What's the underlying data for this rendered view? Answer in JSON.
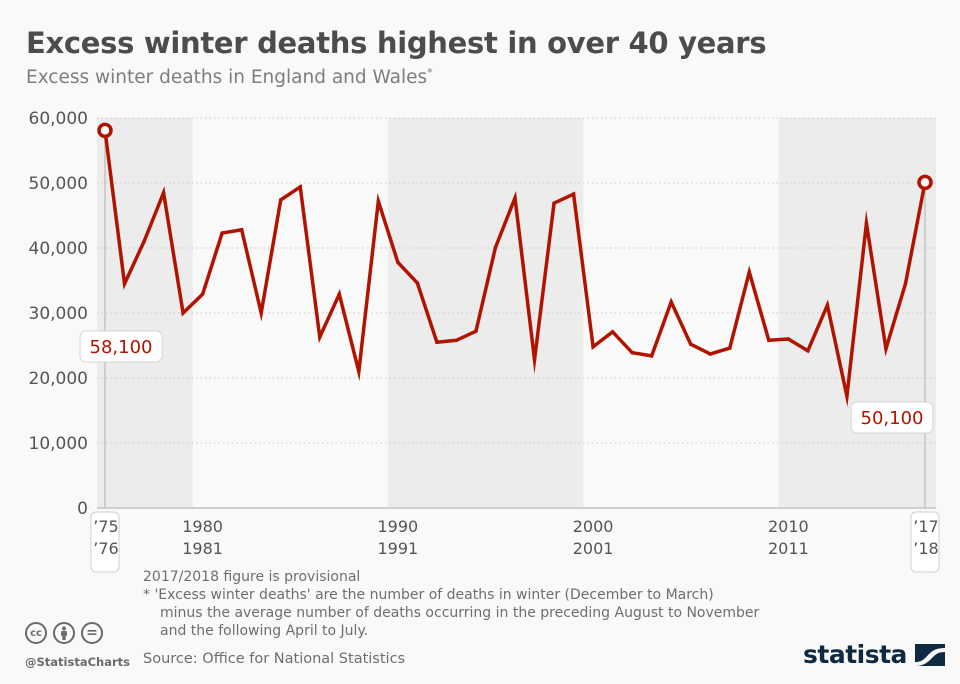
{
  "header": {
    "title": "Excess winter deaths highest in over 40 years",
    "subtitle": "Excess winter deaths in England and Wales",
    "subtitle_marker": "*"
  },
  "chart_data": {
    "type": "line",
    "title": "Excess winter deaths highest in over 40 years",
    "subtitle": "Excess winter deaths in England and Wales*",
    "xlabel": "",
    "ylabel": "",
    "ylim": [
      0,
      60000
    ],
    "y_ticks": [
      0,
      10000,
      20000,
      30000,
      40000,
      50000,
      60000
    ],
    "y_tick_labels": [
      "0",
      "10,000",
      "20,000",
      "30,000",
      "40,000",
      "50,000",
      "60,000"
    ],
    "grid": true,
    "x": [
      "1975/76",
      "1976/77",
      "1977/78",
      "1978/79",
      "1979/80",
      "1980/81",
      "1981/82",
      "1982/83",
      "1983/84",
      "1984/85",
      "1985/86",
      "1986/87",
      "1987/88",
      "1988/89",
      "1989/90",
      "1990/91",
      "1991/92",
      "1992/93",
      "1993/94",
      "1994/95",
      "1995/96",
      "1996/97",
      "1997/98",
      "1998/99",
      "1999/00",
      "2000/01",
      "2001/02",
      "2002/03",
      "2003/04",
      "2004/05",
      "2005/06",
      "2006/07",
      "2007/08",
      "2008/09",
      "2009/10",
      "2010/11",
      "2011/12",
      "2012/13",
      "2013/14",
      "2014/15",
      "2015/16",
      "2016/17",
      "2017/18"
    ],
    "x_tick_labels": [
      {
        "index": 0,
        "line1": "’75",
        "line2": "’76",
        "boxed": true
      },
      {
        "index": 5,
        "line1": "1980",
        "line2": "1981",
        "boxed": false
      },
      {
        "index": 15,
        "line1": "1990",
        "line2": "1991",
        "boxed": false
      },
      {
        "index": 25,
        "line1": "2000",
        "line2": "2001",
        "boxed": false
      },
      {
        "index": 35,
        "line1": "2010",
        "line2": "2011",
        "boxed": false
      },
      {
        "index": 42,
        "line1": "’17",
        "line2": "’18",
        "boxed": true
      }
    ],
    "shaded_ranges": [
      [
        0,
        5
      ],
      [
        15,
        25
      ],
      [
        35,
        42
      ]
    ],
    "series": [
      {
        "name": "Excess winter deaths",
        "color": "#b01400",
        "values": [
          58100,
          34500,
          41000,
          48500,
          30000,
          32900,
          42300,
          42800,
          30000,
          47400,
          49400,
          26300,
          32900,
          21000,
          47200,
          37800,
          34600,
          25500,
          25800,
          27200,
          40100,
          47700,
          22800,
          46900,
          48300,
          24800,
          27100,
          23900,
          23400,
          31700,
          25200,
          23700,
          24600,
          36300,
          25800,
          26000,
          24200,
          31200,
          17200,
          43800,
          24500,
          34500,
          50100
        ]
      }
    ],
    "annotations": [
      {
        "index": 0,
        "label": "58,100"
      },
      {
        "index": 42,
        "label": "50,100"
      }
    ]
  },
  "footer": {
    "note_provisional": "2017/2018 figure is provisional",
    "note_def_1": "* 'Excess winter deaths' are the number of deaths in winter (December to March)",
    "note_def_2": "minus the average number of deaths occurring in the preceding August to November",
    "note_def_3": "and the following April to July.",
    "source": "Source: Office for National Statistics",
    "handle": "@StatistaCharts",
    "license_icons": [
      "cc-icon",
      "attribution-icon",
      "no-derivatives-icon"
    ],
    "cc_glyph": "cc",
    "nd_glyph": "=",
    "logo_text": "statista"
  },
  "colors": {
    "line": "#b01400",
    "shade": "#ececec",
    "logo": "#0f2a40"
  }
}
